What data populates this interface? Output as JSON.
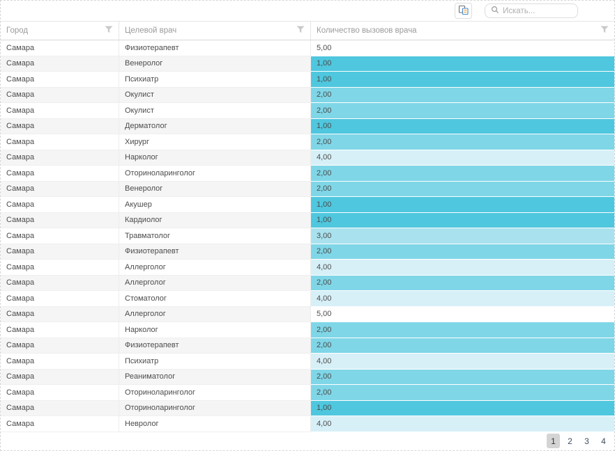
{
  "toolbar": {
    "search_placeholder": "Искать..."
  },
  "grid": {
    "columns": [
      "Город",
      "Целевой врач",
      "Количество вызовов врача"
    ],
    "rows": [
      {
        "city": "Самара",
        "doctor": "Физиотерапевт",
        "value": "5,00",
        "level": "5"
      },
      {
        "city": "Самара",
        "doctor": "Венеролог",
        "value": "1,00",
        "level": "1"
      },
      {
        "city": "Самара",
        "doctor": "Психиатр",
        "value": "1,00",
        "level": "1"
      },
      {
        "city": "Самара",
        "doctor": "Окулист",
        "value": "2,00",
        "level": "2"
      },
      {
        "city": "Самара",
        "doctor": "Окулист",
        "value": "2,00",
        "level": "2"
      },
      {
        "city": "Самара",
        "doctor": "Дерматолог",
        "value": "1,00",
        "level": "1"
      },
      {
        "city": "Самара",
        "doctor": "Хирург",
        "value": "2,00",
        "level": "2"
      },
      {
        "city": "Самара",
        "doctor": "Нарколог",
        "value": "4,00",
        "level": "4"
      },
      {
        "city": "Самара",
        "doctor": "Оториноларинголог",
        "value": "2,00",
        "level": "2"
      },
      {
        "city": "Самара",
        "doctor": "Венеролог",
        "value": "2,00",
        "level": "2"
      },
      {
        "city": "Самара",
        "doctor": "Акушер",
        "value": "1,00",
        "level": "1"
      },
      {
        "city": "Самара",
        "doctor": "Кардиолог",
        "value": "1,00",
        "level": "1"
      },
      {
        "city": "Самара",
        "doctor": "Травматолог",
        "value": "3,00",
        "level": "3"
      },
      {
        "city": "Самара",
        "doctor": "Физиотерапевт",
        "value": "2,00",
        "level": "2"
      },
      {
        "city": "Самара",
        "doctor": "Аллерголог",
        "value": "4,00",
        "level": "4"
      },
      {
        "city": "Самара",
        "doctor": "Аллерголог",
        "value": "2,00",
        "level": "2"
      },
      {
        "city": "Самара",
        "doctor": "Стоматолог",
        "value": "4,00",
        "level": "4"
      },
      {
        "city": "Самара",
        "doctor": "Аллерголог",
        "value": "5,00",
        "level": "5"
      },
      {
        "city": "Самара",
        "doctor": "Нарколог",
        "value": "2,00",
        "level": "2"
      },
      {
        "city": "Самара",
        "doctor": "Физиотерапевт",
        "value": "2,00",
        "level": "2"
      },
      {
        "city": "Самара",
        "doctor": "Психиатр",
        "value": "4,00",
        "level": "4"
      },
      {
        "city": "Самара",
        "doctor": "Реаниматолог",
        "value": "2,00",
        "level": "2"
      },
      {
        "city": "Самара",
        "doctor": "Оториноларинголог",
        "value": "2,00",
        "level": "2"
      },
      {
        "city": "Самара",
        "doctor": "Оториноларинголог",
        "value": "1,00",
        "level": "1"
      },
      {
        "city": "Самара",
        "doctor": "Невролог",
        "value": "4,00",
        "level": "4"
      }
    ]
  },
  "pager": {
    "pages": [
      "1",
      "2",
      "3",
      "4"
    ],
    "current": "1"
  },
  "colors": {
    "value_scale": {
      "1": "#4fc7de",
      "2": "#7fd6e7",
      "3": "#a9e2ee",
      "4": "#d7f0f8",
      "5": "#ffffff"
    },
    "accent": "#4fc7de"
  }
}
